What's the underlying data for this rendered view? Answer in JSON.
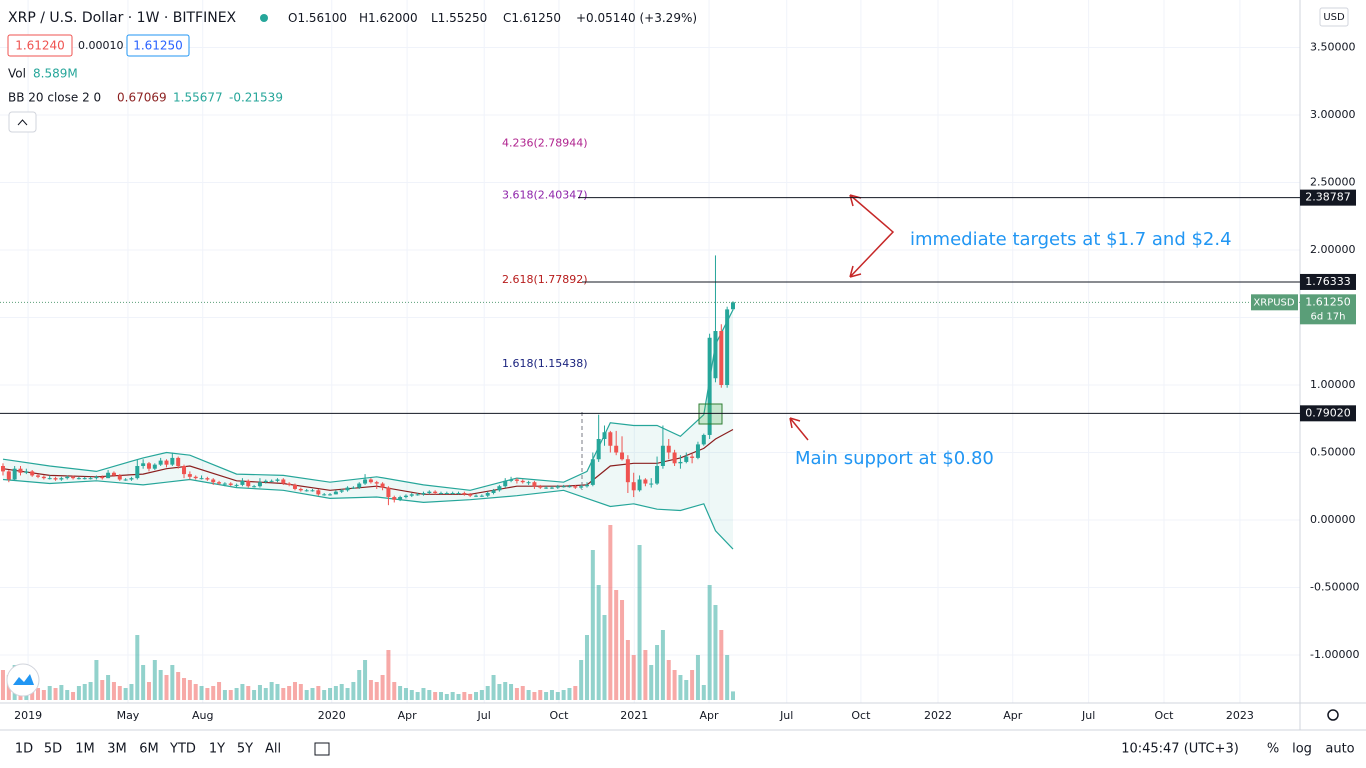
{
  "header": {
    "symbol": "XRP / U.S. Dollar · 1W · BITFINEX",
    "ohlc": [
      "O1.56100",
      "H1.62000",
      "L1.55250",
      "C1.61250",
      "+0.05140 (+3.29%)"
    ],
    "bid": "1.61240",
    "spread": "0.00010",
    "ask": "1.61250",
    "vol_label": "Vol",
    "vol_value": "8.589M",
    "bb_label": "BB 20 close 2 0",
    "bb_values": [
      "0.67069",
      "1.55677",
      "-0.21539"
    ],
    "currency": "USD"
  },
  "chart_data": {
    "type": "candlestick",
    "colors": {
      "up": "#26a69a",
      "down": "#ef5350"
    },
    "candles": [
      [
        0.4,
        0.42,
        0.33,
        0.36
      ],
      [
        0.36,
        0.37,
        0.28,
        0.3
      ],
      [
        0.3,
        0.4,
        0.29,
        0.38
      ],
      [
        0.38,
        0.4,
        0.33,
        0.35
      ],
      [
        0.35,
        0.38,
        0.34,
        0.36
      ],
      [
        0.36,
        0.37,
        0.32,
        0.33
      ],
      [
        0.33,
        0.34,
        0.31,
        0.32
      ],
      [
        0.32,
        0.33,
        0.3,
        0.31
      ],
      [
        0.31,
        0.33,
        0.3,
        0.31
      ],
      [
        0.31,
        0.32,
        0.29,
        0.3
      ],
      [
        0.3,
        0.32,
        0.29,
        0.31
      ],
      [
        0.31,
        0.33,
        0.3,
        0.32
      ],
      [
        0.32,
        0.33,
        0.3,
        0.31
      ],
      [
        0.31,
        0.32,
        0.3,
        0.31
      ],
      [
        0.31,
        0.32,
        0.3,
        0.31
      ],
      [
        0.31,
        0.32,
        0.3,
        0.31
      ],
      [
        0.31,
        0.33,
        0.3,
        0.32
      ],
      [
        0.32,
        0.33,
        0.3,
        0.31
      ],
      [
        0.31,
        0.37,
        0.31,
        0.35
      ],
      [
        0.35,
        0.36,
        0.32,
        0.33
      ],
      [
        0.33,
        0.34,
        0.29,
        0.3
      ],
      [
        0.3,
        0.31,
        0.29,
        0.3
      ],
      [
        0.3,
        0.32,
        0.29,
        0.31
      ],
      [
        0.31,
        0.45,
        0.3,
        0.4
      ],
      [
        0.4,
        0.45,
        0.38,
        0.42
      ],
      [
        0.42,
        0.43,
        0.36,
        0.38
      ],
      [
        0.38,
        0.42,
        0.37,
        0.41
      ],
      [
        0.41,
        0.46,
        0.4,
        0.44
      ],
      [
        0.44,
        0.45,
        0.39,
        0.41
      ],
      [
        0.41,
        0.5,
        0.4,
        0.46
      ],
      [
        0.46,
        0.47,
        0.38,
        0.4
      ],
      [
        0.4,
        0.41,
        0.31,
        0.34
      ],
      [
        0.34,
        0.36,
        0.3,
        0.32
      ],
      [
        0.32,
        0.33,
        0.3,
        0.31
      ],
      [
        0.31,
        0.33,
        0.3,
        0.31
      ],
      [
        0.31,
        0.32,
        0.29,
        0.3
      ],
      [
        0.3,
        0.31,
        0.26,
        0.28
      ],
      [
        0.28,
        0.29,
        0.26,
        0.27
      ],
      [
        0.27,
        0.28,
        0.25,
        0.27
      ],
      [
        0.27,
        0.28,
        0.25,
        0.26
      ],
      [
        0.26,
        0.27,
        0.24,
        0.26
      ],
      [
        0.26,
        0.31,
        0.25,
        0.29
      ],
      [
        0.29,
        0.3,
        0.24,
        0.25
      ],
      [
        0.25,
        0.26,
        0.24,
        0.25
      ],
      [
        0.25,
        0.31,
        0.24,
        0.28
      ],
      [
        0.28,
        0.3,
        0.27,
        0.29
      ],
      [
        0.29,
        0.3,
        0.28,
        0.29
      ],
      [
        0.29,
        0.31,
        0.28,
        0.3
      ],
      [
        0.3,
        0.31,
        0.26,
        0.27
      ],
      [
        0.27,
        0.28,
        0.25,
        0.26
      ],
      [
        0.26,
        0.27,
        0.22,
        0.23
      ],
      [
        0.23,
        0.24,
        0.21,
        0.22
      ],
      [
        0.22,
        0.23,
        0.21,
        0.22
      ],
      [
        0.22,
        0.23,
        0.21,
        0.22
      ],
      [
        0.22,
        0.23,
        0.18,
        0.19
      ],
      [
        0.19,
        0.2,
        0.18,
        0.19
      ],
      [
        0.19,
        0.2,
        0.18,
        0.19
      ],
      [
        0.19,
        0.22,
        0.19,
        0.21
      ],
      [
        0.21,
        0.23,
        0.2,
        0.22
      ],
      [
        0.22,
        0.25,
        0.21,
        0.24
      ],
      [
        0.24,
        0.25,
        0.23,
        0.24
      ],
      [
        0.24,
        0.28,
        0.23,
        0.27
      ],
      [
        0.27,
        0.34,
        0.26,
        0.3
      ],
      [
        0.3,
        0.31,
        0.27,
        0.28
      ],
      [
        0.28,
        0.29,
        0.23,
        0.27
      ],
      [
        0.27,
        0.28,
        0.22,
        0.24
      ],
      [
        0.24,
        0.25,
        0.11,
        0.17
      ],
      [
        0.17,
        0.18,
        0.13,
        0.15
      ],
      [
        0.15,
        0.18,
        0.14,
        0.17
      ],
      [
        0.17,
        0.19,
        0.16,
        0.18
      ],
      [
        0.18,
        0.2,
        0.17,
        0.19
      ],
      [
        0.19,
        0.2,
        0.18,
        0.19
      ],
      [
        0.19,
        0.21,
        0.18,
        0.2
      ],
      [
        0.2,
        0.22,
        0.19,
        0.21
      ],
      [
        0.21,
        0.22,
        0.19,
        0.2
      ],
      [
        0.2,
        0.21,
        0.19,
        0.2
      ],
      [
        0.2,
        0.21,
        0.19,
        0.2
      ],
      [
        0.2,
        0.21,
        0.19,
        0.2
      ],
      [
        0.2,
        0.21,
        0.19,
        0.2
      ],
      [
        0.2,
        0.21,
        0.18,
        0.19
      ],
      [
        0.19,
        0.2,
        0.17,
        0.18
      ],
      [
        0.18,
        0.19,
        0.17,
        0.18
      ],
      [
        0.18,
        0.19,
        0.17,
        0.18
      ],
      [
        0.18,
        0.21,
        0.17,
        0.2
      ],
      [
        0.2,
        0.23,
        0.19,
        0.22
      ],
      [
        0.22,
        0.26,
        0.21,
        0.25
      ],
      [
        0.25,
        0.31,
        0.24,
        0.29
      ],
      [
        0.29,
        0.32,
        0.28,
        0.3
      ],
      [
        0.3,
        0.31,
        0.27,
        0.29
      ],
      [
        0.29,
        0.3,
        0.27,
        0.28
      ],
      [
        0.28,
        0.29,
        0.26,
        0.28
      ],
      [
        0.28,
        0.29,
        0.23,
        0.25
      ],
      [
        0.25,
        0.26,
        0.23,
        0.24
      ],
      [
        0.24,
        0.25,
        0.23,
        0.24
      ],
      [
        0.24,
        0.25,
        0.23,
        0.24
      ],
      [
        0.24,
        0.26,
        0.23,
        0.25
      ],
      [
        0.25,
        0.26,
        0.24,
        0.25
      ],
      [
        0.25,
        0.26,
        0.24,
        0.25
      ],
      [
        0.25,
        0.26,
        0.23,
        0.24
      ],
      [
        0.24,
        0.26,
        0.23,
        0.25
      ],
      [
        0.25,
        0.28,
        0.24,
        0.26
      ],
      [
        0.26,
        0.5,
        0.25,
        0.45
      ],
      [
        0.45,
        0.78,
        0.43,
        0.6
      ],
      [
        0.6,
        0.7,
        0.55,
        0.65
      ],
      [
        0.65,
        0.66,
        0.5,
        0.55
      ],
      [
        0.55,
        0.66,
        0.48,
        0.5
      ],
      [
        0.5,
        0.62,
        0.44,
        0.45
      ],
      [
        0.45,
        0.48,
        0.2,
        0.28
      ],
      [
        0.28,
        0.35,
        0.17,
        0.22
      ],
      [
        0.22,
        0.33,
        0.21,
        0.3
      ],
      [
        0.3,
        0.31,
        0.25,
        0.27
      ],
      [
        0.27,
        0.31,
        0.24,
        0.27
      ],
      [
        0.27,
        0.47,
        0.26,
        0.4
      ],
      [
        0.4,
        0.7,
        0.38,
        0.55
      ],
      [
        0.55,
        0.6,
        0.45,
        0.5
      ],
      [
        0.5,
        0.52,
        0.4,
        0.42
      ],
      [
        0.42,
        0.48,
        0.38,
        0.43
      ],
      [
        0.43,
        0.5,
        0.42,
        0.47
      ],
      [
        0.47,
        0.49,
        0.42,
        0.46
      ],
      [
        0.46,
        0.58,
        0.45,
        0.56
      ],
      [
        0.56,
        0.64,
        0.55,
        0.63
      ],
      [
        0.63,
        1.38,
        0.6,
        1.35
      ],
      [
        1.05,
        1.96,
        1.02,
        1.4
      ],
      [
        1.4,
        1.45,
        0.98,
        1.0
      ],
      [
        1.0,
        1.58,
        0.98,
        1.56
      ],
      [
        1.561,
        1.62,
        1.5525,
        1.6125
      ]
    ],
    "volume": [
      30,
      25,
      35,
      20,
      15,
      18,
      12,
      10,
      14,
      12,
      15,
      10,
      8,
      14,
      16,
      18,
      40,
      20,
      25,
      18,
      14,
      12,
      16,
      65,
      35,
      18,
      40,
      30,
      25,
      35,
      28,
      22,
      20,
      16,
      14,
      12,
      14,
      18,
      10,
      10,
      12,
      16,
      14,
      10,
      15,
      12,
      18,
      16,
      12,
      14,
      18,
      16,
      10,
      12,
      14,
      10,
      12,
      14,
      16,
      12,
      18,
      30,
      40,
      20,
      18,
      25,
      50,
      18,
      14,
      12,
      10,
      8,
      12,
      10,
      8,
      8,
      6,
      8,
      6,
      8,
      6,
      8,
      10,
      14,
      25,
      16,
      18,
      16,
      12,
      14,
      10,
      8,
      10,
      8,
      10,
      8,
      10,
      12,
      14,
      40,
      65,
      150,
      115,
      85,
      175,
      110,
      100,
      60,
      45,
      155,
      50,
      35,
      55,
      70,
      40,
      30,
      25,
      20,
      30,
      45,
      15,
      115,
      95,
      70,
      45,
      8.589
    ],
    "bollinger": {
      "x": [
        0,
        8,
        16,
        24,
        28,
        32,
        40,
        48,
        56,
        64,
        72,
        80,
        88,
        96,
        100,
        104,
        108,
        112,
        116,
        120,
        122,
        125
      ],
      "upper": [
        0.45,
        0.4,
        0.36,
        0.46,
        0.5,
        0.48,
        0.34,
        0.33,
        0.28,
        0.32,
        0.26,
        0.22,
        0.31,
        0.28,
        0.36,
        0.72,
        0.7,
        0.7,
        0.62,
        0.78,
        1.3,
        1.55677
      ],
      "middle": [
        0.38,
        0.33,
        0.32,
        0.34,
        0.38,
        0.4,
        0.29,
        0.27,
        0.22,
        0.25,
        0.19,
        0.19,
        0.25,
        0.25,
        0.26,
        0.4,
        0.42,
        0.42,
        0.46,
        0.53,
        0.6,
        0.67069
      ],
      "lower": [
        0.3,
        0.27,
        0.29,
        0.26,
        0.28,
        0.3,
        0.24,
        0.22,
        0.16,
        0.17,
        0.13,
        0.15,
        0.18,
        0.22,
        0.16,
        0.1,
        0.12,
        0.08,
        0.07,
        0.12,
        -0.08,
        -0.21539
      ],
      "band_color": "#26a69a",
      "basis_color": "#8b1f1f"
    },
    "ylim": [
      -1.3556,
      3.8519
    ],
    "yticks": [
      {
        "value": 3.5,
        "label": "3.50000"
      },
      {
        "value": 3.0,
        "label": "3.00000"
      },
      {
        "value": 2.5,
        "label": "2.50000"
      },
      {
        "value": 2.0,
        "label": "2.00000"
      },
      {
        "value": 1.5,
        "label": "1.50000"
      },
      {
        "value": 1.0,
        "label": "1.00000"
      },
      {
        "value": 0.5,
        "label": "0.50000"
      },
      {
        "value": 0,
        "label": "0.00000"
      },
      {
        "value": -0.5,
        "label": "-0.50000"
      },
      {
        "value": -1.0,
        "label": "-1.00000"
      }
    ],
    "xlim": [
      -0.51,
      222.09
    ],
    "xticks": [
      {
        "value": 4.3,
        "label": "2019"
      },
      {
        "value": 21.4,
        "label": "May"
      },
      {
        "value": 34.2,
        "label": "Aug"
      },
      {
        "value": 56.3,
        "label": "2020"
      },
      {
        "value": 69.2,
        "label": "Apr"
      },
      {
        "value": 82.4,
        "label": "Jul"
      },
      {
        "value": 95.2,
        "label": "Oct"
      },
      {
        "value": 108.1,
        "label": "2021"
      },
      {
        "value": 120.9,
        "label": "Apr"
      },
      {
        "value": 134.2,
        "label": "Jul"
      },
      {
        "value": 146.9,
        "label": "Oct"
      },
      {
        "value": 160.1,
        "label": "2022"
      },
      {
        "value": 172.9,
        "label": "Apr"
      },
      {
        "value": 185.9,
        "label": "Jul"
      },
      {
        "value": 198.8,
        "label": "Oct"
      },
      {
        "value": 211.8,
        "label": "2023"
      }
    ],
    "grid": true,
    "fib": [
      {
        "label": "4.236(2.78944)",
        "value": 2.78944,
        "color": "#b0248f"
      },
      {
        "label": "3.618(2.40347)",
        "value": 2.40347,
        "color": "#8e24aa"
      },
      {
        "label": "2.618(1.77892)",
        "value": 1.77892,
        "color": "#b71c1c"
      },
      {
        "label": "1.618(1.15438)",
        "value": 1.15438,
        "color": "#1a237e"
      }
    ],
    "hlines": [
      {
        "value": 2.38787,
        "label": "2.38787"
      },
      {
        "value": 1.76333,
        "label": "1.76333"
      },
      {
        "value": 0.7902,
        "label": "0.79020"
      }
    ],
    "last_price": {
      "name": "XRPUSD",
      "value": 1.6125,
      "label": "1.61250",
      "countdown": "6d 17h",
      "color": "#5a9e78"
    },
    "annotations": [
      "immediate targets at $1.7 and $2.4",
      "Main support at $0.80"
    ]
  },
  "toolbar": {
    "ranges": [
      "1D",
      "5D",
      "1M",
      "3M",
      "6M",
      "YTD",
      "1Y",
      "5Y",
      "All"
    ],
    "clock": "10:45:47 (UTC+3)",
    "options": [
      "%",
      "log",
      "auto"
    ]
  }
}
